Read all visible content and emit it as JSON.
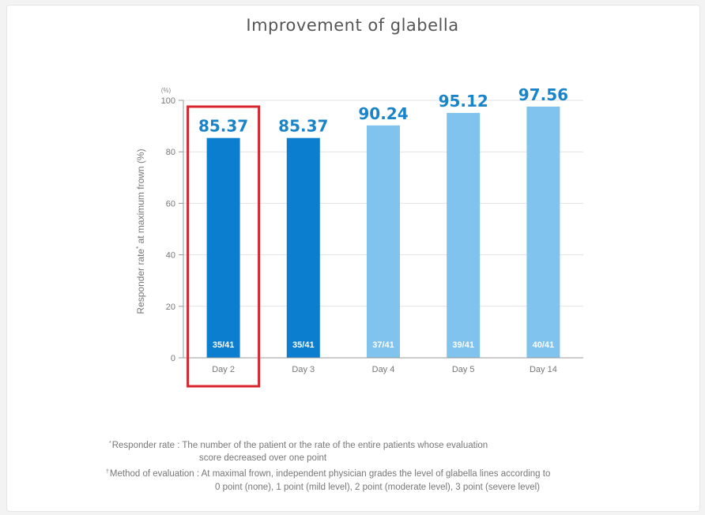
{
  "chart_data": {
    "type": "bar",
    "title": "Improvement of glabella",
    "ylabel_prefix": "Responder rate",
    "ylabel_mark": "*",
    "ylabel_suffix": " at maximum frown (%)",
    "y_unit": "(%)",
    "ylim": [
      0,
      100
    ],
    "yticks": [
      "0",
      "20",
      "40",
      "60",
      "80",
      "100"
    ],
    "grid": true,
    "categories": [
      "Day 2",
      "Day 3",
      "Day 4",
      "Day 5",
      "Day 14"
    ],
    "values": [
      85.37,
      85.37,
      90.24,
      95.12,
      97.56
    ],
    "value_labels": [
      "85.37",
      "85.37",
      "90.24",
      "95.12",
      "97.56"
    ],
    "counts": [
      "35/41",
      "35/41",
      "37/41",
      "39/41",
      "40/41"
    ],
    "bar_colors": [
      "#0b7ed0",
      "#0b7ed0",
      "#80c3ee",
      "#80c3ee",
      "#80c3ee"
    ],
    "value_label_color": "#1a84c9",
    "highlight_category": "Day 2",
    "highlight_color": "#d9232d"
  },
  "footnotes": [
    {
      "mark": "*",
      "term": "Responder rate",
      "line1": "The number of the patient or the rate of the entire patients whose evaluation",
      "line2": "score decreased over one point"
    },
    {
      "mark": "†",
      "term": "Method of evaluation",
      "line1": "At maximal frown, independent physician grades the level of glabella lines according to",
      "line2": "0 point (none), 1 point (mild level), 2 point (moderate level), 3 point (severe level)"
    }
  ]
}
